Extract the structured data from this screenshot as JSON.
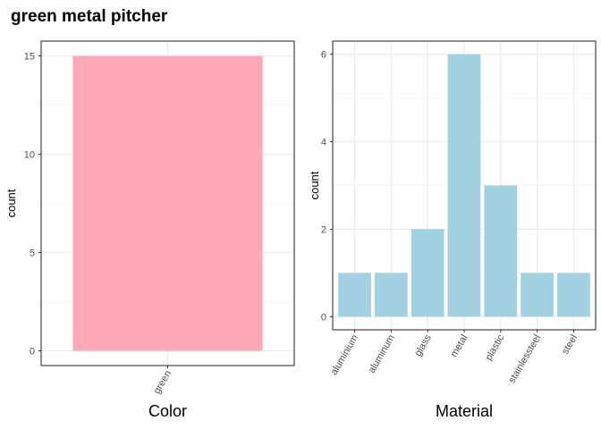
{
  "title": "green metal pitcher",
  "chart_data": [
    {
      "type": "bar",
      "xlabel": "Color",
      "ylabel": "count",
      "categories": [
        "green"
      ],
      "values": [
        15
      ],
      "yticks": [
        0,
        5,
        10,
        15
      ],
      "ylim": [
        -0.75,
        15.75
      ],
      "bar_color": "#ffa8b8",
      "grid": true
    },
    {
      "type": "bar",
      "xlabel": "Material",
      "ylabel": "count",
      "categories": [
        "aluminium",
        "aluminum",
        "glass",
        "metal",
        "plastic",
        "stainlessteel",
        "steel"
      ],
      "values": [
        1,
        1,
        2,
        6,
        3,
        1,
        1
      ],
      "yticks": [
        0,
        2,
        4,
        6
      ],
      "ylim": [
        -0.3,
        6.3
      ],
      "bar_color": "#a2d2e2",
      "grid": true
    }
  ]
}
